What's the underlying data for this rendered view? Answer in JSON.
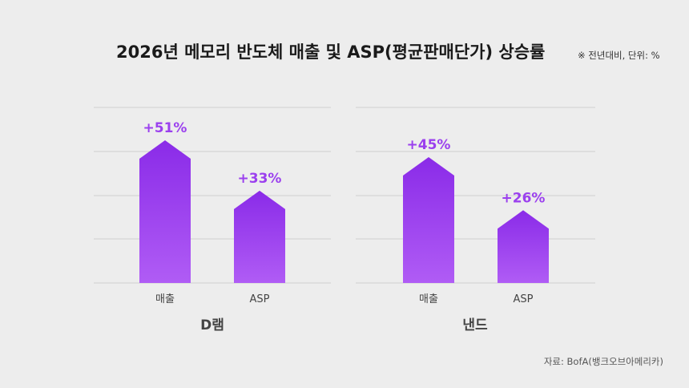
{
  "title": "2026년 메모리 반도체 매출 및 ASP(평균판매단가) 상승률",
  "note": "※ 전년대비, 단위: %",
  "source": "자료: BofA(뱅크오브아메리카)",
  "colors": {
    "bar_top": "#8a2be8",
    "bar_bottom": "#b05cf5",
    "label": "#9b40ee",
    "grid": "#cfcfcf"
  },
  "chart_data": [
    {
      "type": "bar",
      "group": "D램",
      "categories": [
        "매출",
        "ASP"
      ],
      "values": [
        51,
        33
      ],
      "labels": [
        "+51%",
        "+33%"
      ],
      "grid": true
    },
    {
      "type": "bar",
      "group": "낸드",
      "categories": [
        "매출",
        "ASP"
      ],
      "values": [
        45,
        26
      ],
      "labels": [
        "+45%",
        "+26%"
      ],
      "grid": true
    }
  ]
}
